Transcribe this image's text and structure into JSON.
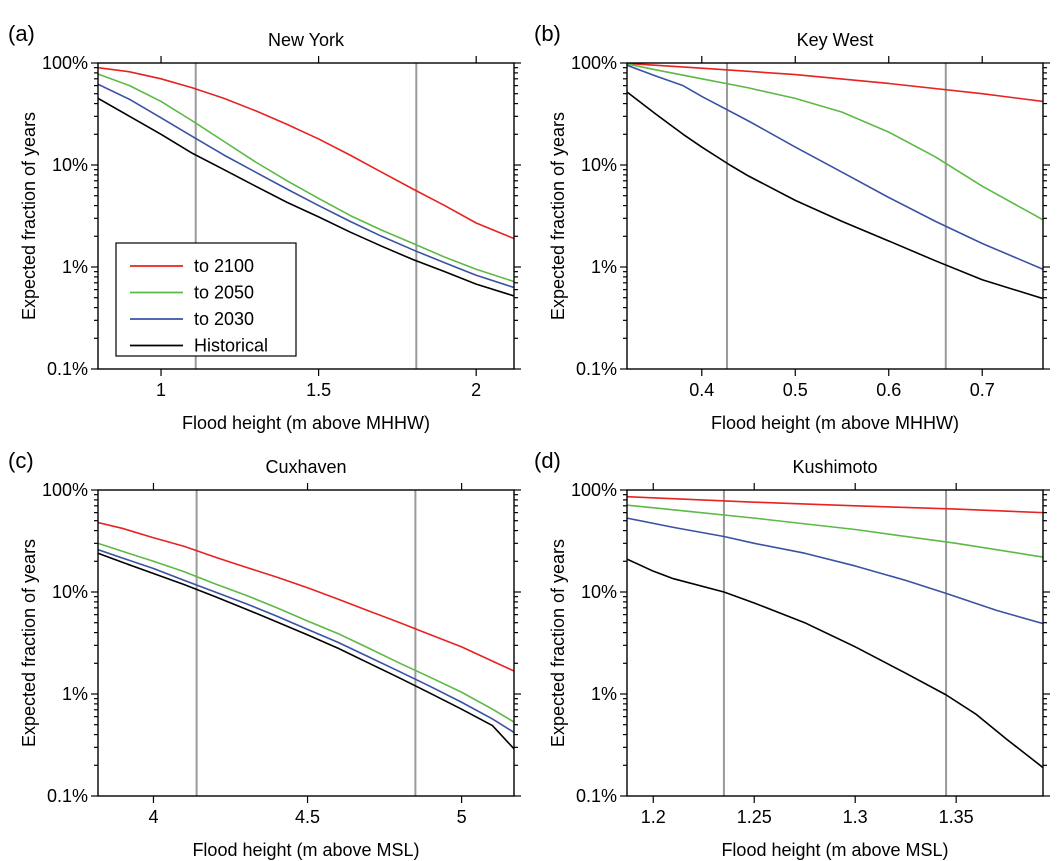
{
  "chart_data": [
    {
      "type": "line",
      "panel_label": "(a)",
      "title": "New York",
      "xlabel": "Flood height (m above MHHW)",
      "ylabel": "Expected fraction of years",
      "yscale": "log",
      "xlim": [
        0.8,
        2.12
      ],
      "ylim": [
        0.001,
        1
      ],
      "xticks": [
        1,
        1.5,
        2
      ],
      "xtick_labels": [
        "1",
        "1.5",
        "2"
      ],
      "yticks": [
        0.001,
        0.01,
        0.1,
        1
      ],
      "ytick_labels": [
        "0.1%",
        "1%",
        "10%",
        "100%"
      ],
      "reference_lines_x": [
        1.11,
        1.81
      ],
      "legend": {
        "position": "bottom-left",
        "entries": [
          "to 2100",
          "to 2050",
          "to 2030",
          "Historical"
        ]
      },
      "series": [
        {
          "name": "to 2100",
          "color": "#e8221f",
          "x": [
            0.8,
            0.9,
            1.0,
            1.1,
            1.2,
            1.3,
            1.4,
            1.5,
            1.6,
            1.7,
            1.8,
            1.9,
            2.0,
            2.12
          ],
          "values": [
            0.9,
            0.82,
            0.7,
            0.57,
            0.45,
            0.34,
            0.25,
            0.18,
            0.125,
            0.085,
            0.058,
            0.04,
            0.027,
            0.019
          ]
        },
        {
          "name": "to 2050",
          "color": "#5cb946",
          "x": [
            0.8,
            0.9,
            1.0,
            1.1,
            1.2,
            1.3,
            1.4,
            1.5,
            1.6,
            1.7,
            1.8,
            1.9,
            2.0,
            2.12
          ],
          "values": [
            0.78,
            0.6,
            0.42,
            0.27,
            0.17,
            0.107,
            0.07,
            0.047,
            0.032,
            0.023,
            0.017,
            0.0125,
            0.0095,
            0.0072
          ]
        },
        {
          "name": "to 2030",
          "color": "#3a52a4",
          "x": [
            0.8,
            0.9,
            1.0,
            1.1,
            1.2,
            1.3,
            1.4,
            1.5,
            1.6,
            1.7,
            1.8,
            1.9,
            2.0,
            2.12
          ],
          "values": [
            0.62,
            0.44,
            0.29,
            0.19,
            0.125,
            0.085,
            0.058,
            0.04,
            0.028,
            0.02,
            0.0147,
            0.011,
            0.0083,
            0.0063
          ]
        },
        {
          "name": "Historical",
          "color": "#000000",
          "x": [
            0.8,
            0.9,
            1.0,
            1.1,
            1.2,
            1.3,
            1.4,
            1.5,
            1.6,
            1.7,
            1.8,
            1.9,
            2.0,
            2.12
          ],
          "values": [
            0.45,
            0.3,
            0.2,
            0.13,
            0.09,
            0.062,
            0.043,
            0.031,
            0.022,
            0.016,
            0.0118,
            0.009,
            0.0068,
            0.0052
          ]
        }
      ]
    },
    {
      "type": "line",
      "panel_label": "(b)",
      "title": "Key West",
      "xlabel": "Flood height (m above MHHW)",
      "ylabel": "Expected fraction of years",
      "yscale": "log",
      "xlim": [
        0.32,
        0.765
      ],
      "ylim": [
        0.001,
        1
      ],
      "xticks": [
        0.4,
        0.5,
        0.6,
        0.7
      ],
      "xtick_labels": [
        "0.4",
        "0.5",
        "0.6",
        "0.7"
      ],
      "yticks": [
        0.001,
        0.01,
        0.1,
        1
      ],
      "ytick_labels": [
        "0.1%",
        "1%",
        "10%",
        "100%"
      ],
      "reference_lines_x": [
        0.427,
        0.661
      ],
      "series": [
        {
          "name": "to 2100",
          "color": "#e8221f",
          "x": [
            0.32,
            0.4,
            0.5,
            0.6,
            0.7,
            0.765
          ],
          "values": [
            0.99,
            0.89,
            0.77,
            0.63,
            0.5,
            0.42
          ]
        },
        {
          "name": "to 2050",
          "color": "#5cb946",
          "x": [
            0.32,
            0.35,
            0.4,
            0.45,
            0.5,
            0.55,
            0.6,
            0.65,
            0.7,
            0.765
          ],
          "values": [
            0.98,
            0.86,
            0.7,
            0.57,
            0.45,
            0.33,
            0.21,
            0.12,
            0.062,
            0.029
          ]
        },
        {
          "name": "to 2030",
          "color": "#3a52a4",
          "x": [
            0.32,
            0.35,
            0.38,
            0.4,
            0.45,
            0.5,
            0.55,
            0.6,
            0.65,
            0.7,
            0.765
          ],
          "values": [
            0.95,
            0.75,
            0.6,
            0.47,
            0.27,
            0.15,
            0.085,
            0.048,
            0.028,
            0.017,
            0.0095
          ]
        },
        {
          "name": "Historical",
          "color": "#000000",
          "x": [
            0.32,
            0.35,
            0.38,
            0.4,
            0.43,
            0.45,
            0.5,
            0.55,
            0.6,
            0.65,
            0.7,
            0.765
          ],
          "values": [
            0.52,
            0.32,
            0.2,
            0.15,
            0.1,
            0.078,
            0.045,
            0.028,
            0.018,
            0.0115,
            0.0075,
            0.0049
          ]
        }
      ]
    },
    {
      "type": "line",
      "panel_label": "(c)",
      "title": "Cuxhaven",
      "xlabel": "Flood height (m above MSL)",
      "ylabel": "Expected fraction of years",
      "yscale": "log",
      "xlim": [
        3.82,
        5.17
      ],
      "ylim": [
        0.001,
        1
      ],
      "xticks": [
        4,
        4.5,
        5
      ],
      "xtick_labels": [
        "4",
        "4.5",
        "5"
      ],
      "yticks": [
        0.001,
        0.01,
        0.1,
        1
      ],
      "ytick_labels": [
        "0.1%",
        "1%",
        "10%",
        "100%"
      ],
      "reference_lines_x": [
        4.14,
        4.85
      ],
      "series": [
        {
          "name": "to 2100",
          "color": "#e8221f",
          "x": [
            3.82,
            3.9,
            4.0,
            4.1,
            4.2,
            4.3,
            4.4,
            4.5,
            4.6,
            4.7,
            4.8,
            4.9,
            5.0,
            5.1,
            5.17
          ],
          "values": [
            0.48,
            0.42,
            0.34,
            0.28,
            0.22,
            0.175,
            0.14,
            0.11,
            0.085,
            0.065,
            0.05,
            0.038,
            0.029,
            0.021,
            0.0168
          ]
        },
        {
          "name": "to 2050",
          "color": "#5cb946",
          "x": [
            3.82,
            3.9,
            4.0,
            4.1,
            4.2,
            4.3,
            4.4,
            4.5,
            4.6,
            4.7,
            4.8,
            4.9,
            5.0,
            5.1,
            5.17
          ],
          "values": [
            0.3,
            0.25,
            0.2,
            0.158,
            0.12,
            0.093,
            0.07,
            0.052,
            0.039,
            0.028,
            0.02,
            0.0145,
            0.0104,
            0.0071,
            0.0053
          ]
        },
        {
          "name": "to 2030",
          "color": "#3a52a4",
          "x": [
            3.82,
            3.9,
            4.0,
            4.1,
            4.2,
            4.3,
            4.4,
            4.5,
            4.6,
            4.7,
            4.8,
            4.9,
            5.0,
            5.1,
            5.17
          ],
          "values": [
            0.26,
            0.215,
            0.17,
            0.13,
            0.1,
            0.077,
            0.058,
            0.043,
            0.032,
            0.023,
            0.0165,
            0.0118,
            0.0083,
            0.0057,
            0.0042
          ]
        },
        {
          "name": "Historical",
          "color": "#000000",
          "x": [
            3.82,
            3.9,
            4.0,
            4.1,
            4.2,
            4.3,
            4.4,
            4.5,
            4.6,
            4.7,
            4.8,
            4.9,
            5.0,
            5.1,
            5.17
          ],
          "values": [
            0.24,
            0.195,
            0.152,
            0.118,
            0.09,
            0.068,
            0.051,
            0.038,
            0.028,
            0.02,
            0.0143,
            0.0101,
            0.0071,
            0.0049,
            0.0029
          ]
        }
      ]
    },
    {
      "type": "line",
      "panel_label": "(d)",
      "title": "Kushimoto",
      "xlabel": "Flood height (m above MSL)",
      "ylabel": "Expected fraction of years",
      "yscale": "log",
      "xlim": [
        1.187,
        1.393
      ],
      "ylim": [
        0.001,
        1
      ],
      "xticks": [
        1.2,
        1.25,
        1.3,
        1.35
      ],
      "xtick_labels": [
        "1.2",
        "1.25",
        "1.3",
        "1.35"
      ],
      "yticks": [
        0.001,
        0.01,
        0.1,
        1
      ],
      "ytick_labels": [
        "0.1%",
        "1%",
        "10%",
        "100%"
      ],
      "reference_lines_x": [
        1.235,
        1.345
      ],
      "series": [
        {
          "name": "to 2100",
          "color": "#e8221f",
          "x": [
            1.187,
            1.25,
            1.3,
            1.35,
            1.393
          ],
          "values": [
            0.86,
            0.76,
            0.7,
            0.65,
            0.6
          ]
        },
        {
          "name": "to 2050",
          "color": "#5cb946",
          "x": [
            1.187,
            1.21,
            1.25,
            1.3,
            1.35,
            1.393
          ],
          "values": [
            0.71,
            0.64,
            0.53,
            0.41,
            0.3,
            0.22
          ]
        },
        {
          "name": "to 2030",
          "color": "#3a52a4",
          "x": [
            1.187,
            1.21,
            1.235,
            1.25,
            1.275,
            1.3,
            1.325,
            1.345,
            1.37,
            1.393
          ],
          "values": [
            0.53,
            0.43,
            0.35,
            0.3,
            0.24,
            0.18,
            0.13,
            0.097,
            0.066,
            0.049
          ]
        },
        {
          "name": "Historical",
          "color": "#000000",
          "x": [
            1.187,
            1.2,
            1.21,
            1.235,
            1.25,
            1.275,
            1.3,
            1.325,
            1.345,
            1.36,
            1.375,
            1.393
          ],
          "values": [
            0.21,
            0.16,
            0.135,
            0.1,
            0.078,
            0.05,
            0.029,
            0.016,
            0.0098,
            0.0063,
            0.0036,
            0.0019
          ]
        }
      ]
    }
  ]
}
